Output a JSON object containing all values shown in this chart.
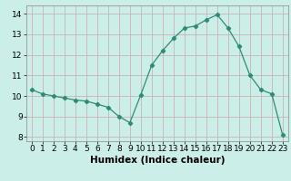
{
  "x": [
    0,
    1,
    2,
    3,
    4,
    5,
    6,
    7,
    8,
    9,
    10,
    11,
    12,
    13,
    14,
    15,
    16,
    17,
    18,
    19,
    20,
    21,
    22,
    23
  ],
  "y": [
    10.3,
    10.1,
    10.0,
    9.9,
    9.8,
    9.75,
    9.6,
    9.45,
    9.0,
    8.7,
    10.05,
    11.5,
    12.2,
    12.8,
    13.3,
    13.4,
    13.7,
    13.95,
    13.3,
    12.4,
    11.0,
    10.3,
    10.1,
    8.1
  ],
  "line_color": "#2e8b75",
  "marker": "D",
  "marker_size": 2.2,
  "bg_color": "#cceee8",
  "grid_color_v": "#c8a8a8",
  "grid_color_h": "#c8a8a8",
  "xlabel": "Humidex (Indice chaleur)",
  "xlim": [
    -0.5,
    23.5
  ],
  "ylim": [
    7.8,
    14.4
  ],
  "yticks": [
    8,
    9,
    10,
    11,
    12,
    13,
    14
  ],
  "xticks": [
    0,
    1,
    2,
    3,
    4,
    5,
    6,
    7,
    8,
    9,
    10,
    11,
    12,
    13,
    14,
    15,
    16,
    17,
    18,
    19,
    20,
    21,
    22,
    23
  ],
  "xlabel_fontsize": 7.5,
  "tick_fontsize": 6.5
}
